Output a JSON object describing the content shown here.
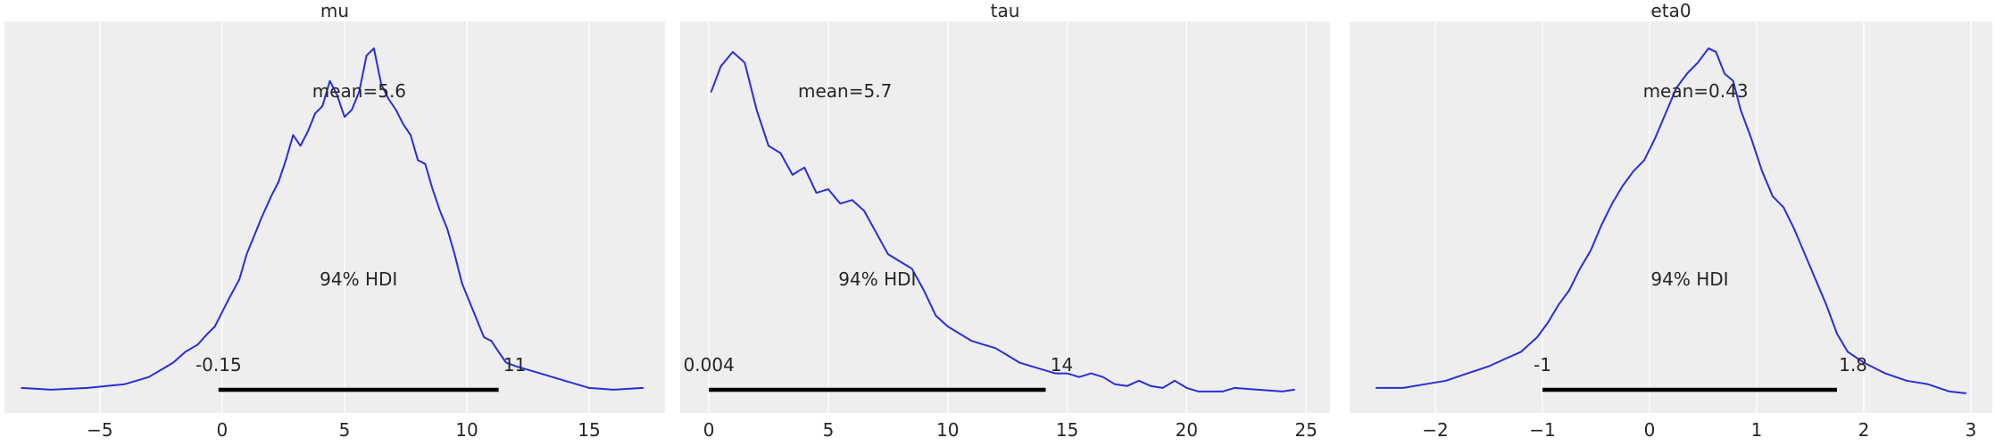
{
  "chart_data": [
    {
      "type": "line",
      "title": "mu",
      "xlabel": "",
      "ylabel": "",
      "xlim": [
        -8.9,
        18.1
      ],
      "ylim": [
        0,
        1.0
      ],
      "xticks": [
        -5,
        0,
        5,
        10,
        15
      ],
      "xtick_labels": [
        "−5",
        "0",
        "5",
        "10",
        "15"
      ],
      "grid": true,
      "series": [
        {
          "x": [
            -8.2,
            -7.0,
            -5.5,
            -4.0,
            -3.0,
            -2.5,
            -2.0,
            -1.5,
            -1.0,
            -0.6,
            -0.3,
            0.0,
            0.3,
            0.7,
            1.0,
            1.3,
            1.6,
            2.0,
            2.3,
            2.6,
            2.9,
            3.2,
            3.5,
            3.8,
            4.1,
            4.4,
            4.7,
            5.0,
            5.3,
            5.6,
            5.9,
            6.2,
            6.5,
            6.8,
            7.1,
            7.4,
            7.7,
            8.0,
            8.3,
            8.6,
            8.9,
            9.2,
            9.5,
            9.8,
            10.1,
            10.4,
            10.7,
            11.0,
            11.3,
            11.6,
            12.0,
            12.5,
            13.0,
            13.5,
            14.0,
            14.5,
            15.0,
            16.0,
            17.2
          ],
          "y": [
            0.03,
            0.025,
            0.03,
            0.04,
            0.06,
            0.08,
            0.1,
            0.13,
            0.15,
            0.18,
            0.2,
            0.24,
            0.28,
            0.33,
            0.4,
            0.45,
            0.5,
            0.56,
            0.6,
            0.66,
            0.73,
            0.7,
            0.74,
            0.79,
            0.81,
            0.88,
            0.84,
            0.78,
            0.8,
            0.85,
            0.95,
            0.97,
            0.87,
            0.83,
            0.8,
            0.76,
            0.73,
            0.66,
            0.65,
            0.58,
            0.52,
            0.47,
            0.4,
            0.32,
            0.27,
            0.22,
            0.17,
            0.16,
            0.13,
            0.1,
            0.09,
            0.08,
            0.07,
            0.06,
            0.05,
            0.04,
            0.03,
            0.025,
            0.03
          ]
        }
      ],
      "annotations": {
        "mean": "mean=5.6",
        "hdi": "94% HDI",
        "hdi_low": "-0.15",
        "hdi_high": "11"
      },
      "hdi_range": [
        -0.15,
        11.3
      ]
    },
    {
      "type": "line",
      "title": "tau",
      "xlabel": "",
      "ylabel": "",
      "xlim": [
        -1.2,
        26.0
      ],
      "ylim": [
        0,
        1.0
      ],
      "xticks": [
        0,
        5,
        10,
        15,
        20,
        25
      ],
      "xtick_labels": [
        "0",
        "5",
        "10",
        "15",
        "20",
        "25"
      ],
      "grid": true,
      "series": [
        {
          "x": [
            0.1,
            0.5,
            1.0,
            1.5,
            2.0,
            2.5,
            3.0,
            3.5,
            4.0,
            4.5,
            5.0,
            5.5,
            6.0,
            6.5,
            7.0,
            7.5,
            8.0,
            8.5,
            9.0,
            9.5,
            10.0,
            10.5,
            11.0,
            11.5,
            12.0,
            12.5,
            13.0,
            13.5,
            14.0,
            14.5,
            15.0,
            15.5,
            16.0,
            16.5,
            17.0,
            17.5,
            18.0,
            18.5,
            19.0,
            19.5,
            20.0,
            20.5,
            21.0,
            21.5,
            22.0,
            23.0,
            24.0,
            24.5
          ],
          "y": [
            0.85,
            0.92,
            0.96,
            0.93,
            0.8,
            0.7,
            0.68,
            0.62,
            0.64,
            0.57,
            0.58,
            0.54,
            0.55,
            0.52,
            0.46,
            0.4,
            0.38,
            0.36,
            0.3,
            0.23,
            0.2,
            0.18,
            0.16,
            0.15,
            0.14,
            0.12,
            0.1,
            0.09,
            0.08,
            0.07,
            0.07,
            0.06,
            0.07,
            0.06,
            0.04,
            0.035,
            0.05,
            0.035,
            0.03,
            0.05,
            0.03,
            0.02,
            0.02,
            0.02,
            0.03,
            0.025,
            0.02,
            0.025
          ]
        }
      ],
      "annotations": {
        "mean": "mean=5.7",
        "hdi": "94% HDI",
        "hdi_low": "0.004",
        "hdi_high": "14"
      },
      "hdi_range": [
        0.004,
        14.1
      ]
    },
    {
      "type": "line",
      "title": "eta0",
      "xlabel": "",
      "ylabel": "",
      "xlim": [
        -2.8,
        3.2
      ],
      "ylim": [
        0,
        1.0
      ],
      "xticks": [
        -2,
        -1,
        0,
        1,
        2,
        3
      ],
      "xtick_labels": [
        "−2",
        "−1",
        "0",
        "1",
        "2",
        "3"
      ],
      "grid": true,
      "series": [
        {
          "x": [
            -2.55,
            -2.3,
            -2.1,
            -1.9,
            -1.7,
            -1.5,
            -1.35,
            -1.2,
            -1.05,
            -0.95,
            -0.85,
            -0.75,
            -0.65,
            -0.55,
            -0.45,
            -0.35,
            -0.25,
            -0.15,
            -0.05,
            0.05,
            0.15,
            0.25,
            0.35,
            0.45,
            0.55,
            0.62,
            0.7,
            0.78,
            0.85,
            0.95,
            1.05,
            1.15,
            1.25,
            1.35,
            1.45,
            1.55,
            1.65,
            1.75,
            1.85,
            2.0,
            2.2,
            2.4,
            2.6,
            2.8,
            2.95
          ],
          "y": [
            0.03,
            0.03,
            0.04,
            0.05,
            0.07,
            0.09,
            0.11,
            0.13,
            0.17,
            0.21,
            0.26,
            0.3,
            0.36,
            0.41,
            0.48,
            0.54,
            0.59,
            0.63,
            0.66,
            0.72,
            0.79,
            0.86,
            0.9,
            0.93,
            0.97,
            0.96,
            0.9,
            0.88,
            0.8,
            0.72,
            0.63,
            0.56,
            0.53,
            0.47,
            0.4,
            0.33,
            0.26,
            0.18,
            0.13,
            0.1,
            0.07,
            0.05,
            0.04,
            0.02,
            0.015
          ]
        }
      ],
      "annotations": {
        "mean": "mean=0.43",
        "hdi": "94% HDI",
        "hdi_low": "-1",
        "hdi_high": "1.8"
      },
      "hdi_range": [
        -1.0,
        1.75
      ]
    }
  ],
  "colors": {
    "panel_background": "#eeeeee",
    "grid": "#ffffff",
    "density_line": "#2a2ed6",
    "hdi_bar": "#000000",
    "text": "#262626"
  }
}
